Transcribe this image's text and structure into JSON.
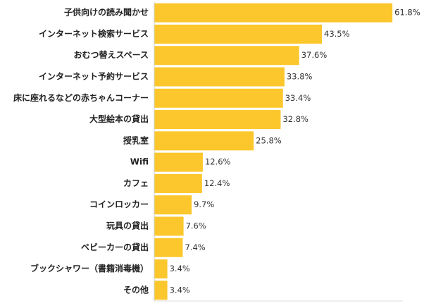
{
  "chart_data": {
    "type": "hbar",
    "categories": [
      "子供向けの読み聞かせ",
      "インターネット検索サービス",
      "おむつ替えスペース",
      "インターネット予約サービス",
      "床に座れるなどの赤ちゃんコーナー",
      "大型絵本の貸出",
      "授乳室",
      "Wifi",
      "カフェ",
      "コインロッカー",
      "玩具の貸出",
      "ベビーカーの貸出",
      "ブックシャワー（書籍消毒機）",
      "その他"
    ],
    "values": [
      61.8,
      43.5,
      37.6,
      33.8,
      33.4,
      32.8,
      25.8,
      12.6,
      12.4,
      9.7,
      7.6,
      7.4,
      3.4,
      3.4
    ],
    "value_labels": [
      "61.8%",
      "43.5%",
      "37.6%",
      "33.8%",
      "33.4%",
      "32.8%",
      "25.8%",
      "12.6%",
      "12.4%",
      "9.7%",
      "7.6%",
      "7.4%",
      "3.4%",
      "3.4%"
    ],
    "color": "#fcc72c",
    "xlim": [
      0,
      70
    ]
  }
}
